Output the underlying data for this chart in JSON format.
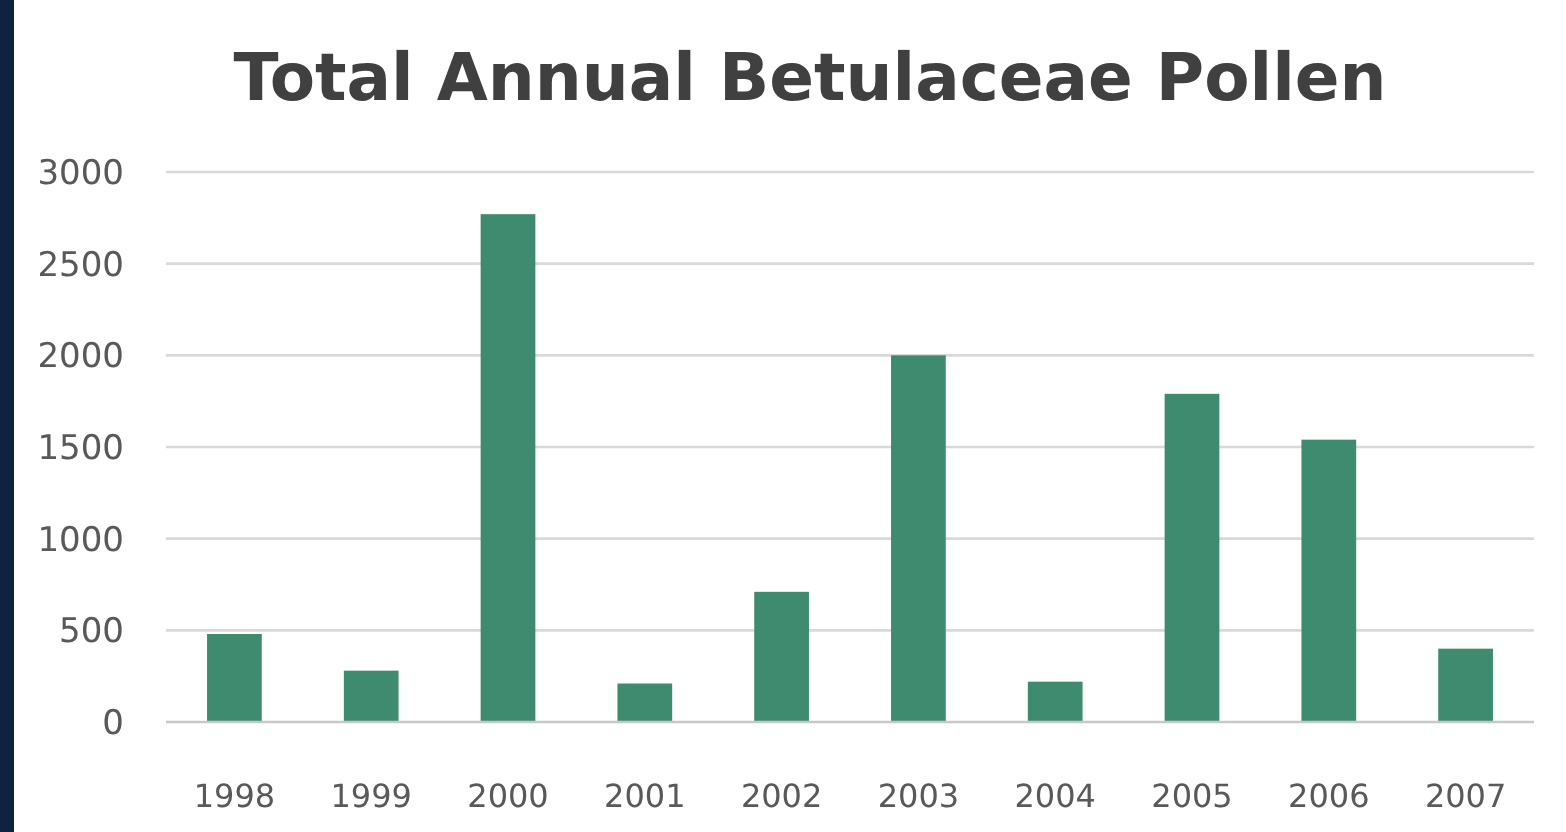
{
  "chart_data": {
    "type": "bar",
    "title": "Total Annual Betulaceae Pollen",
    "categories": [
      "1998",
      "1999",
      "2000",
      "2001",
      "2002",
      "2003",
      "2004",
      "2005",
      "2006",
      "2007"
    ],
    "values": [
      480,
      280,
      2770,
      210,
      710,
      2000,
      220,
      1790,
      1540,
      400
    ],
    "color": "#3f8b6f",
    "ylim": [
      0,
      3000
    ],
    "yticks": [
      0,
      500,
      1000,
      1500,
      2000,
      2500,
      3000
    ],
    "grid": "y"
  }
}
